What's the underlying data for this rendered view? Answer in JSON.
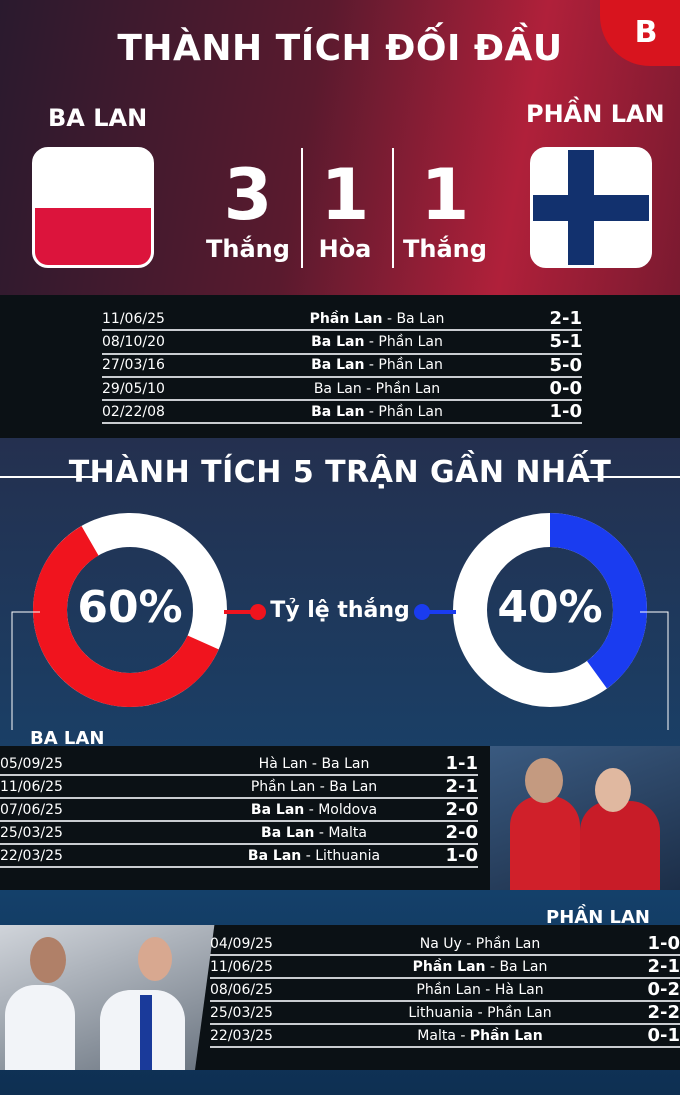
{
  "header": {
    "title": "THÀNH TÍCH ĐỐI ĐẦU",
    "logo": "B",
    "home": "BA LAN",
    "away": "PHẦN LAN"
  },
  "summary": [
    {
      "value": "3",
      "label": "Thắng"
    },
    {
      "value": "1",
      "label": "Hòa"
    },
    {
      "value": "1",
      "label": "Thắng"
    }
  ],
  "h2h": [
    {
      "date": "11/06/25",
      "home": "Phần Lan",
      "away": "Ba Lan",
      "bold": "home",
      "score": "2-1"
    },
    {
      "date": "08/10/20",
      "home": "Ba Lan",
      "away": "Phần Lan",
      "bold": "home",
      "score": "5-1"
    },
    {
      "date": "27/03/16",
      "home": "Ba Lan",
      "away": "Phần Lan",
      "bold": "home",
      "score": "5-0"
    },
    {
      "date": "29/05/10",
      "home": "Ba Lan",
      "away": "Phần Lan",
      "bold": "",
      "score": "0-0"
    },
    {
      "date": "02/22/08",
      "home": "Ba Lan",
      "away": "Phần Lan",
      "bold": "home",
      "score": "1-0"
    }
  ],
  "form": {
    "title": "THÀNH TÍCH 5 TRẬN GẦN NHẤT",
    "win_rate_label": "Tỷ lệ thắng",
    "home": {
      "name": "BA LAN",
      "win_pct": "60%",
      "win_value": 60,
      "color": "#f0141e"
    },
    "away": {
      "name": "PHẦN LAN",
      "win_pct": "40%",
      "win_value": 40,
      "color": "#1a3cf0"
    }
  },
  "home_recent": [
    {
      "date": "05/09/25",
      "home": "Hà Lan",
      "away": "Ba Lan",
      "bold": "",
      "score": "1-1"
    },
    {
      "date": "11/06/25",
      "home": "Phần Lan",
      "away": "Ba Lan",
      "bold": "",
      "score": "2-1"
    },
    {
      "date": "07/06/25",
      "home": "Ba Lan",
      "away": "Moldova",
      "bold": "home",
      "score": "2-0"
    },
    {
      "date": "25/03/25",
      "home": "Ba Lan",
      "away": "Malta",
      "bold": "home",
      "score": "2-0"
    },
    {
      "date": "22/03/25",
      "home": "Ba Lan",
      "away": "Lithuania",
      "bold": "home",
      "score": "1-0"
    }
  ],
  "away_recent": [
    {
      "date": "04/09/25",
      "home": "Na Uy",
      "away": "Phần Lan",
      "bold": "",
      "score": "1-0"
    },
    {
      "date": "11/06/25",
      "home": "Phần Lan",
      "away": "Ba Lan",
      "bold": "home",
      "score": "2-1"
    },
    {
      "date": "08/06/25",
      "home": "Phần Lan",
      "away": "Hà Lan",
      "bold": "",
      "score": "0-2"
    },
    {
      "date": "25/03/25",
      "home": "Lithuania",
      "away": "Phần Lan",
      "bold": "",
      "score": "2-2"
    },
    {
      "date": "22/03/25",
      "home": "Malta",
      "away": "Phần Lan",
      "bold": "away",
      "score": "0-1"
    }
  ]
}
